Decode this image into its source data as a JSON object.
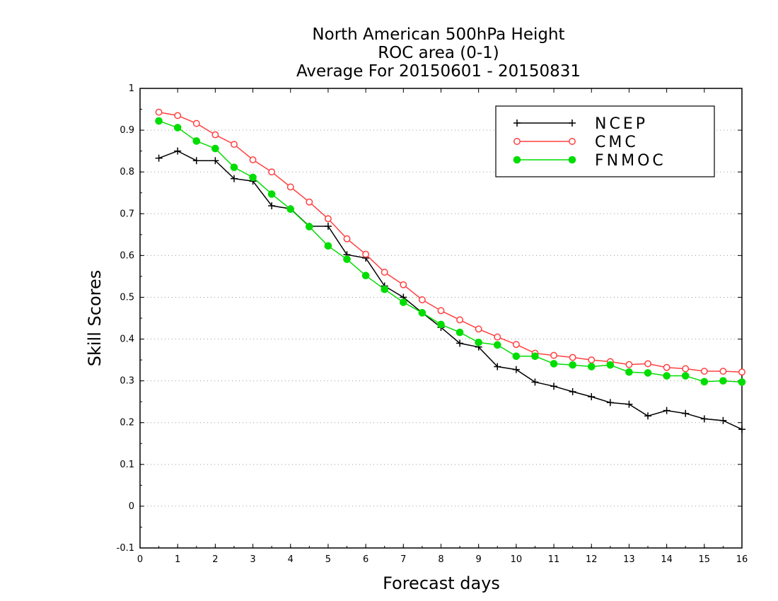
{
  "chart_data": {
    "type": "line",
    "title_lines": [
      "North American 500hPa Height",
      "ROC area (0-1)",
      "Average For 20150601 - 20150831"
    ],
    "xlabel": "Forecast days",
    "ylabel": "Skill Scores",
    "xlim": [
      0,
      16
    ],
    "ylim": [
      -0.1,
      1
    ],
    "x_ticks": [
      0,
      1,
      2,
      3,
      4,
      5,
      6,
      7,
      8,
      9,
      10,
      11,
      12,
      13,
      14,
      15,
      16
    ],
    "x_tick_labels": [
      "0",
      "1",
      "2",
      "3",
      "4",
      "5",
      "6",
      "7",
      "8",
      "9",
      "10",
      "11",
      "12",
      "13",
      "14",
      "15",
      "16"
    ],
    "y_ticks": [
      -0.1,
      0,
      0.1,
      0.2,
      0.3,
      0.4,
      0.5,
      0.6,
      0.7,
      0.8,
      0.9,
      1
    ],
    "y_tick_labels": [
      "-0.1",
      "0",
      "0.1",
      "0.2",
      "0.3",
      "0.4",
      "0.5",
      "0.6",
      "0.7",
      "0.8",
      "0.9",
      "1"
    ],
    "grid": "horizontal dotted",
    "legend_position": "top-right",
    "x": [
      0.5,
      1,
      1.5,
      2,
      2.5,
      3,
      3.5,
      4,
      4.5,
      5,
      5.5,
      6,
      6.5,
      7,
      7.5,
      8,
      8.5,
      9,
      9.5,
      10,
      10.5,
      11,
      11.5,
      12,
      12.5,
      13,
      13.5,
      14,
      14.5,
      15,
      15.5,
      16
    ],
    "series": [
      {
        "name": "NCEP",
        "color": "#000000",
        "marker": "plus",
        "values": [
          0.833,
          0.85,
          0.827,
          0.827,
          0.784,
          0.778,
          0.719,
          0.712,
          0.67,
          0.67,
          0.602,
          0.594,
          0.527,
          0.5,
          0.463,
          0.428,
          0.39,
          0.381,
          0.334,
          0.327,
          0.297,
          0.287,
          0.274,
          0.262,
          0.248,
          0.244,
          0.216,
          0.229,
          0.222,
          0.209,
          0.205,
          0.184
        ]
      },
      {
        "name": "CMC",
        "color": "#ff4040",
        "marker": "open-circle",
        "values": [
          0.943,
          0.935,
          0.916,
          0.889,
          0.866,
          0.829,
          0.8,
          0.764,
          0.728,
          0.688,
          0.64,
          0.603,
          0.56,
          0.53,
          0.494,
          0.468,
          0.446,
          0.424,
          0.405,
          0.387,
          0.366,
          0.361,
          0.356,
          0.35,
          0.346,
          0.339,
          0.341,
          0.332,
          0.329,
          0.323,
          0.323,
          0.321
        ]
      },
      {
        "name": "FNMOC",
        "color": "#00dd00",
        "marker": "filled-circle",
        "values": [
          0.922,
          0.906,
          0.874,
          0.856,
          0.811,
          0.787,
          0.747,
          0.711,
          0.669,
          0.623,
          0.591,
          0.552,
          0.519,
          0.488,
          0.463,
          0.435,
          0.416,
          0.392,
          0.386,
          0.359,
          0.359,
          0.341,
          0.338,
          0.334,
          0.338,
          0.321,
          0.319,
          0.312,
          0.312,
          0.298,
          0.3,
          0.297
        ]
      }
    ]
  }
}
